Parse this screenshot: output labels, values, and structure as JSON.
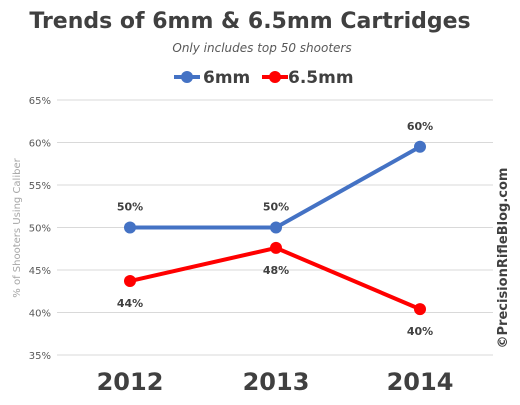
{
  "chart_data": {
    "type": "line",
    "title": "Trends of 6mm & 6.5mm Cartridges",
    "subtitle": "Only includes top 50 shooters",
    "ylabel": "% of Shooters Using Caliber",
    "xlabel": "",
    "categories": [
      "2012",
      "2013",
      "2014"
    ],
    "y_ticks": [
      "35%",
      "40%",
      "45%",
      "50%",
      "55%",
      "60%",
      "65%"
    ],
    "ylim": [
      35,
      65
    ],
    "grid": true,
    "legend_position": "top-center",
    "series": [
      {
        "name": "6mm",
        "color": "#4472c4",
        "values": [
          50,
          50,
          59.5
        ],
        "labels": [
          "50%",
          "50%",
          "60%"
        ],
        "label_position": [
          "above",
          "above",
          "above"
        ]
      },
      {
        "name": "6.5mm",
        "color": "#ff0000",
        "values": [
          43.7,
          47.6,
          40.4
        ],
        "labels": [
          "44%",
          "48%",
          "40%"
        ],
        "label_position": [
          "below",
          "below",
          "below"
        ]
      }
    ],
    "watermark": "©PrecisionRifleBlog.com"
  }
}
